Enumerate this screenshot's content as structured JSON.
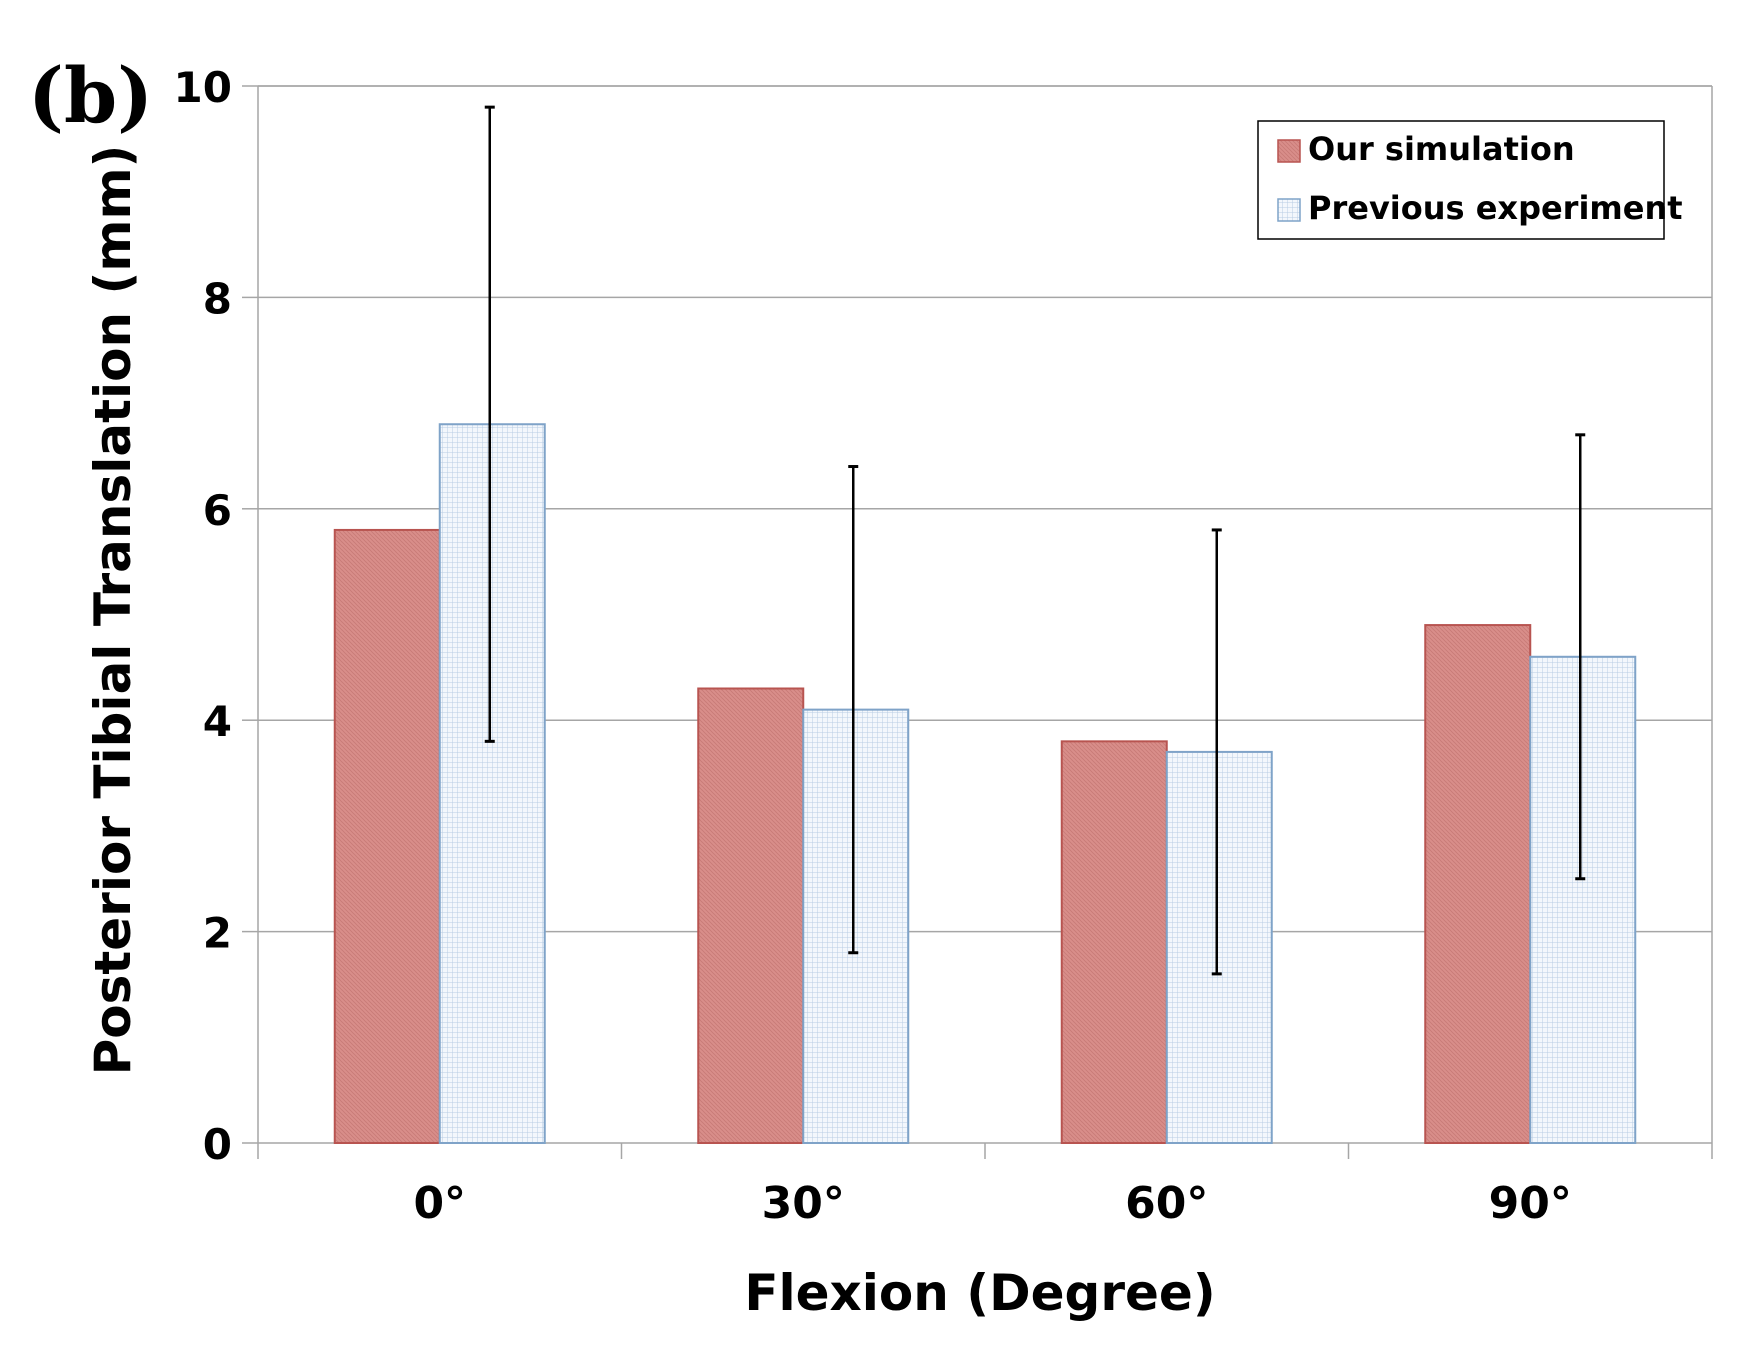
{
  "panel_label": "(b)",
  "legend": {
    "items": [
      {
        "label": "Our simulation"
      },
      {
        "label": "Previous experiment"
      }
    ]
  },
  "colors": {
    "simulation_fill": "#d98e8a",
    "simulation_stroke": "#b85450",
    "experiment_fill": "#e6eef8",
    "experiment_stroke": "#7fa3c8",
    "grid": "#a6a6a6",
    "axis": "#a6a6a6",
    "errorbar": "#000000"
  },
  "chart_data": {
    "type": "bar",
    "title": "",
    "xlabel": "Flexion (Degree)",
    "ylabel": "Posterior Tibial Translation (mm)",
    "categories": [
      "0°",
      "30°",
      "60°",
      "90°"
    ],
    "ylim": [
      0,
      10
    ],
    "yticks": [
      0,
      2,
      4,
      6,
      8,
      10
    ],
    "grid": true,
    "legend_position": "top-right",
    "series": [
      {
        "name": "Our simulation",
        "values": [
          5.8,
          4.3,
          3.8,
          4.9
        ]
      },
      {
        "name": "Previous experiment",
        "values": [
          6.8,
          4.1,
          3.7,
          4.6
        ],
        "error_low": [
          3.8,
          1.8,
          1.6,
          2.5
        ],
        "error_high": [
          9.8,
          6.4,
          5.8,
          6.7
        ]
      }
    ]
  }
}
